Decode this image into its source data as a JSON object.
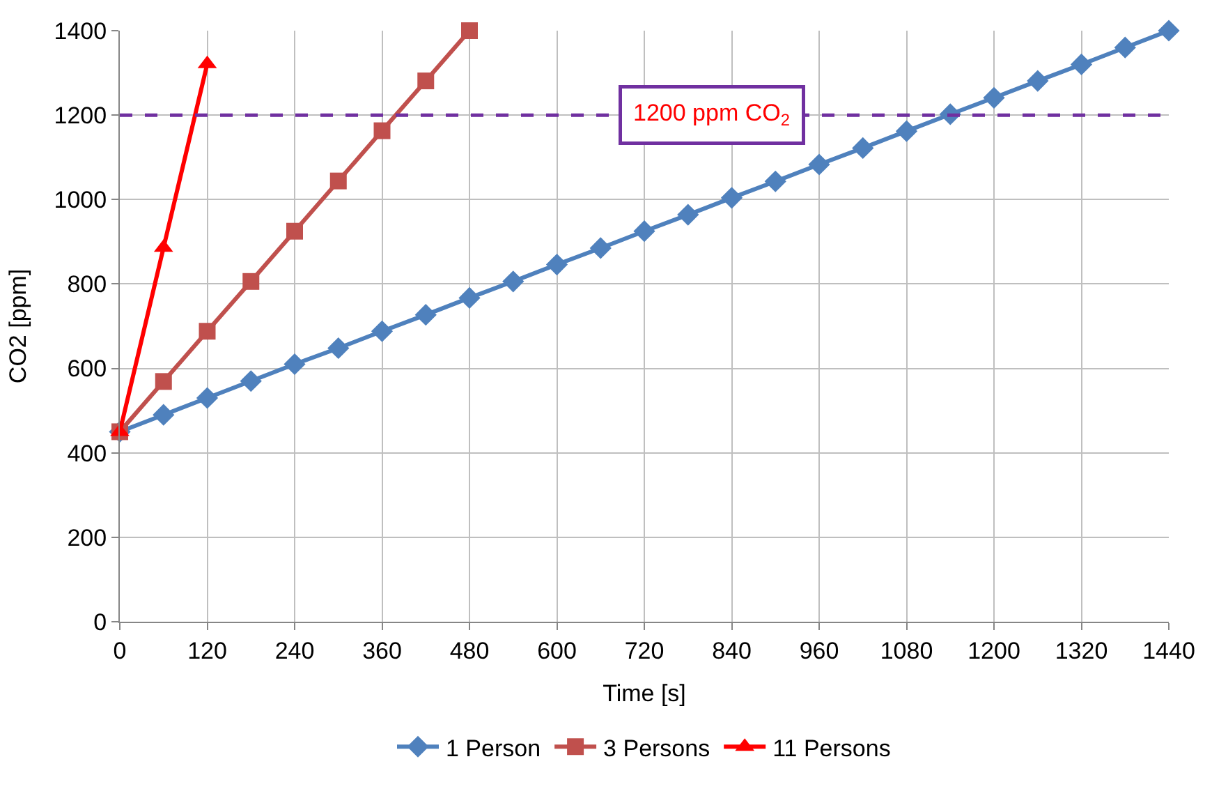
{
  "chart_data": {
    "type": "line",
    "xlabel": "Time [s]",
    "ylabel": "CO2 [ppm]",
    "xlim": [
      0,
      1440
    ],
    "xticks": [
      0,
      120,
      240,
      360,
      480,
      600,
      720,
      840,
      960,
      1080,
      1200,
      1320,
      1440
    ],
    "ylim": [
      0,
      1400
    ],
    "yticks": [
      0,
      200,
      400,
      600,
      800,
      1000,
      1200,
      1400
    ],
    "grid": true,
    "legend": "bottom",
    "line_style": "solid",
    "series": [
      {
        "name": "1 Person",
        "color": "#4f81bd",
        "marker": "diamond",
        "x": [
          0,
          60,
          120,
          180,
          240,
          300,
          360,
          420,
          480,
          540,
          600,
          660,
          720,
          780,
          840,
          900,
          960,
          1020,
          1080,
          1140,
          1200,
          1260,
          1320,
          1380,
          1440
        ],
        "values": [
          450,
          490,
          530,
          570,
          610,
          648,
          688,
          727,
          767,
          806,
          846,
          885,
          925,
          964,
          1004,
          1043,
          1083,
          1122,
          1162,
          1202,
          1241,
          1281,
          1320,
          1360,
          1400
        ]
      },
      {
        "name": "3 Persons",
        "color": "#c0504d",
        "marker": "square",
        "x": [
          0,
          60,
          120,
          180,
          240,
          300,
          360,
          420,
          480
        ],
        "values": [
          450,
          569,
          688,
          806,
          925,
          1044,
          1163,
          1281,
          1400
        ]
      },
      {
        "name": "11 Persons",
        "color": "#ff0000",
        "marker": "triangle",
        "x": [
          0,
          60,
          120
        ],
        "values": [
          450,
          886,
          1321
        ]
      }
    ],
    "ref_lines": [
      {
        "axis": "y",
        "value": 1200,
        "label": "1200 ppm CO$_{2}$",
        "color": "#7030a0",
        "line_style": "dashed"
      }
    ]
  }
}
